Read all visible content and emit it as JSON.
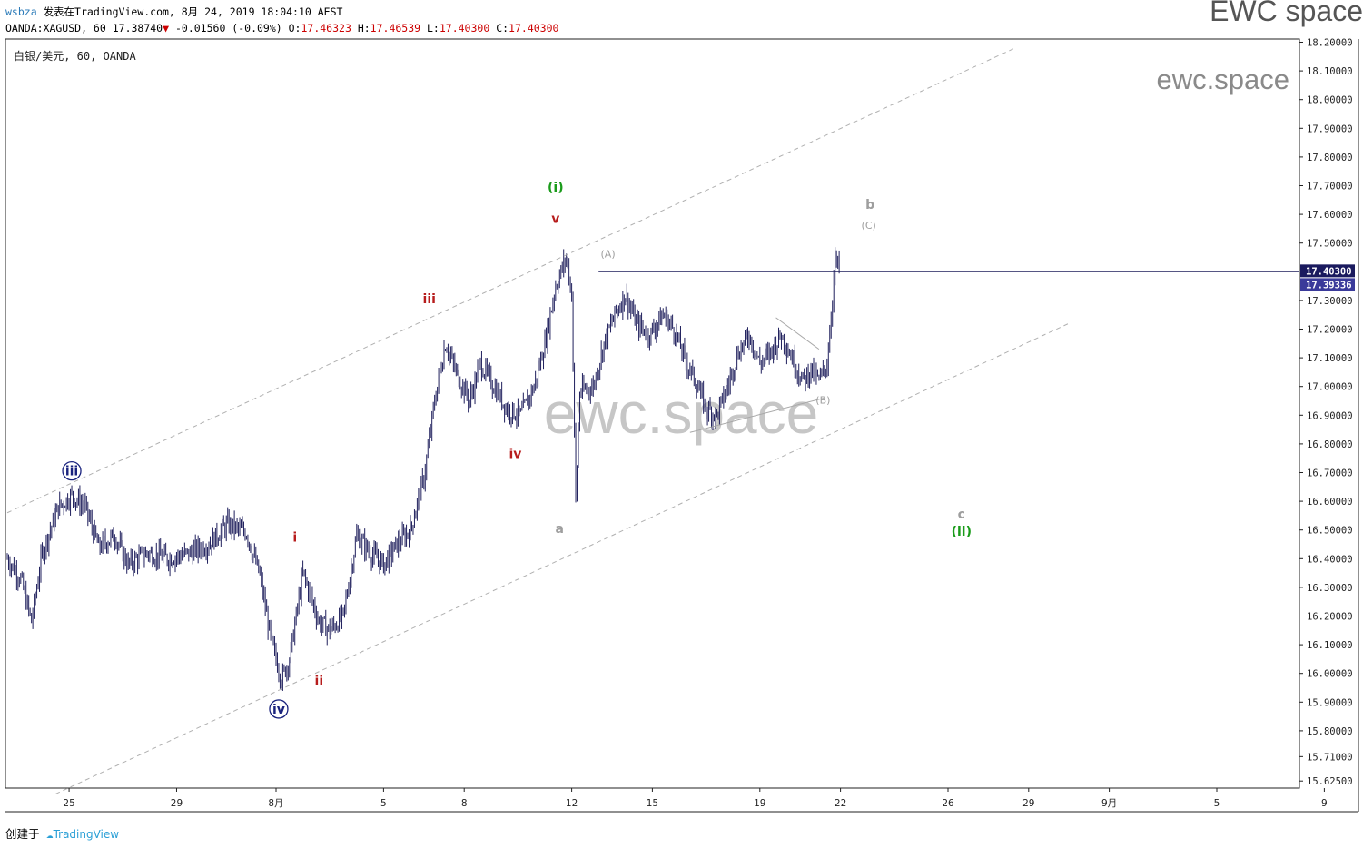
{
  "header": {
    "user": "wsbza",
    "published_text": "发表在TradingView.com, 8月 24, 2019 18:04:10 AEST",
    "symbol": "OANDA:XAGUSD, 60",
    "last": "17.38740",
    "change": "-0.01560 (-0.09%)",
    "o_label": "O:",
    "o_value": "17.46323",
    "h_label": "H:",
    "h_value": "17.46539",
    "l_label": "L:",
    "l_value": "17.40300",
    "c_label": "C:",
    "c_value": "17.40300"
  },
  "brand": "EWC space",
  "footer": {
    "created_by": "创建于",
    "tradingview": "TradingView"
  },
  "colors": {
    "candles": "#1f1f5c",
    "price_line": "#1f1f5c",
    "wave_red": "#b71c1c",
    "wave_green": "#1a9b1a",
    "wave_navy": "#1a237e",
    "wave_gray": "#9e9e9e",
    "channel": "#b0b0b0",
    "price_badge": "#1a1a5e",
    "price_badge2": "#3a3a9a"
  },
  "chart_data": {
    "type": "candlestick",
    "legend_name": "白银/美元, 60, OANDA",
    "watermark_small": "ewc.space",
    "watermark_big": "ewc.space",
    "ylim": [
      15.58,
      18.22
    ],
    "y_ticks": [
      "18.20000",
      "18.10000",
      "18.00000",
      "17.90000",
      "17.80000",
      "17.70000",
      "17.60000",
      "17.50000",
      "17.30000",
      "17.20000",
      "17.10000",
      "17.00000",
      "16.90000",
      "16.80000",
      "16.70000",
      "16.60000",
      "16.50000",
      "16.40000",
      "16.30000",
      "16.20000",
      "16.10000",
      "16.00000",
      "15.90000",
      "15.80000",
      "15.71000",
      "15.62500"
    ],
    "y_tick_values": [
      18.2,
      18.1,
      18.0,
      17.9,
      17.8,
      17.7,
      17.6,
      17.5,
      17.3,
      17.2,
      17.1,
      17.0,
      16.9,
      16.8,
      16.7,
      16.6,
      16.5,
      16.4,
      16.3,
      16.2,
      16.1,
      16.0,
      15.9,
      15.8,
      15.71,
      15.625
    ],
    "x_ticks": [
      {
        "label": "25",
        "day": 2.3
      },
      {
        "label": "29",
        "day": 6.3
      },
      {
        "label": "8月",
        "day": 10
      },
      {
        "label": "5",
        "day": 14
      },
      {
        "label": "8",
        "day": 17
      },
      {
        "label": "12",
        "day": 21
      },
      {
        "label": "15",
        "day": 24
      },
      {
        "label": "19",
        "day": 28
      },
      {
        "label": "22",
        "day": 31
      },
      {
        "label": "26",
        "day": 35
      },
      {
        "label": "29",
        "day": 38
      },
      {
        "label": "9月",
        "day": 41
      },
      {
        "label": "5",
        "day": 45
      },
      {
        "label": "9",
        "day": 49
      }
    ],
    "price_labels": [
      {
        "value": 17.403,
        "text": "17.40300"
      },
      {
        "value": 17.39336,
        "text": "17.39336"
      }
    ],
    "path": [
      {
        "d": 0,
        "p": 16.4
      },
      {
        "d": 0.5,
        "p": 16.33
      },
      {
        "d": 0.9,
        "p": 16.18
      },
      {
        "d": 1.3,
        "p": 16.42
      },
      {
        "d": 1.9,
        "p": 16.58
      },
      {
        "d": 2.4,
        "p": 16.62
      },
      {
        "d": 2.9,
        "p": 16.58
      },
      {
        "d": 3.4,
        "p": 16.44
      },
      {
        "d": 4.0,
        "p": 16.48
      },
      {
        "d": 4.5,
        "p": 16.38
      },
      {
        "d": 5.2,
        "p": 16.42
      },
      {
        "d": 6.0,
        "p": 16.4
      },
      {
        "d": 6.8,
        "p": 16.42
      },
      {
        "d": 7.5,
        "p": 16.45
      },
      {
        "d": 8.2,
        "p": 16.52
      },
      {
        "d": 8.9,
        "p": 16.49
      },
      {
        "d": 9.4,
        "p": 16.34
      },
      {
        "d": 9.8,
        "p": 16.12
      },
      {
        "d": 10.2,
        "p": 15.98
      },
      {
        "d": 10.5,
        "p": 16.05
      },
      {
        "d": 11.0,
        "p": 16.35
      },
      {
        "d": 11.6,
        "p": 16.18
      },
      {
        "d": 12.0,
        "p": 16.15
      },
      {
        "d": 12.5,
        "p": 16.2
      },
      {
        "d": 13.0,
        "p": 16.48
      },
      {
        "d": 13.5,
        "p": 16.42
      },
      {
        "d": 14.0,
        "p": 16.38
      },
      {
        "d": 14.5,
        "p": 16.45
      },
      {
        "d": 15.0,
        "p": 16.5
      },
      {
        "d": 15.5,
        "p": 16.68
      },
      {
        "d": 15.9,
        "p": 16.95
      },
      {
        "d": 16.3,
        "p": 17.15
      },
      {
        "d": 16.7,
        "p": 17.05
      },
      {
        "d": 17.2,
        "p": 16.95
      },
      {
        "d": 17.6,
        "p": 17.08
      },
      {
        "d": 18.1,
        "p": 17.0
      },
      {
        "d": 18.6,
        "p": 16.92
      },
      {
        "d": 19.1,
        "p": 16.9
      },
      {
        "d": 19.6,
        "p": 17.0
      },
      {
        "d": 20.0,
        "p": 17.15
      },
      {
        "d": 20.4,
        "p": 17.35
      },
      {
        "d": 20.8,
        "p": 17.45
      },
      {
        "d": 21.0,
        "p": 17.32
      },
      {
        "d": 21.15,
        "p": 16.6
      },
      {
        "d": 21.3,
        "p": 16.98
      },
      {
        "d": 21.8,
        "p": 17.0
      },
      {
        "d": 22.2,
        "p": 17.15
      },
      {
        "d": 22.6,
        "p": 17.25
      },
      {
        "d": 23.0,
        "p": 17.32
      },
      {
        "d": 23.4,
        "p": 17.22
      },
      {
        "d": 23.9,
        "p": 17.18
      },
      {
        "d": 24.4,
        "p": 17.25
      },
      {
        "d": 24.8,
        "p": 17.2
      },
      {
        "d": 25.2,
        "p": 17.1
      },
      {
        "d": 25.6,
        "p": 17.02
      },
      {
        "d": 26.0,
        "p": 16.92
      },
      {
        "d": 26.4,
        "p": 16.9
      },
      {
        "d": 26.8,
        "p": 17.0
      },
      {
        "d": 27.2,
        "p": 17.12
      },
      {
        "d": 27.6,
        "p": 17.18
      },
      {
        "d": 28.0,
        "p": 17.08
      },
      {
        "d": 28.4,
        "p": 17.12
      },
      {
        "d": 28.8,
        "p": 17.18
      },
      {
        "d": 29.2,
        "p": 17.1
      },
      {
        "d": 29.6,
        "p": 17.02
      },
      {
        "d": 29.9,
        "p": 17.06
      },
      {
        "d": 30.2,
        "p": 17.02
      },
      {
        "d": 30.5,
        "p": 17.08
      },
      {
        "d": 30.65,
        "p": 17.25
      },
      {
        "d": 30.8,
        "p": 17.44
      },
      {
        "d": 31.0,
        "p": 17.4
      }
    ],
    "channel_lines": [
      {
        "d1": 0,
        "p1": 16.56,
        "d2": 37.5,
        "p2": 18.18
      },
      {
        "d1": 1.8,
        "p1": 15.58,
        "d2": 39.5,
        "p2": 17.22
      }
    ],
    "triangle_lines": [
      {
        "d1": 25.4,
        "p1": 16.84,
        "d2": 30.4,
        "p2": 16.96
      },
      {
        "d1": 28.6,
        "p1": 17.24,
        "d2": 30.2,
        "p2": 17.13
      }
    ],
    "horizontal_line": {
      "d1": 22.0,
      "p": 17.4
    },
    "wave_labels": [
      {
        "text": "iii",
        "d": 2.4,
        "p": 16.69,
        "color": "navy",
        "circled": true,
        "bold": true
      },
      {
        "text": "iv",
        "d": 10.1,
        "p": 15.86,
        "color": "navy",
        "circled": true,
        "bold": true
      },
      {
        "text": "i",
        "d": 10.7,
        "p": 16.46,
        "color": "red",
        "bold": true
      },
      {
        "text": "ii",
        "d": 11.6,
        "p": 15.96,
        "color": "red",
        "bold": true
      },
      {
        "text": "iii",
        "d": 15.7,
        "p": 17.29,
        "color": "red",
        "bold": true
      },
      {
        "text": "iv",
        "d": 18.9,
        "p": 16.75,
        "color": "red",
        "bold": true
      },
      {
        "text": "v",
        "d": 20.4,
        "p": 17.57,
        "color": "red",
        "bold": true
      },
      {
        "text": "(i)",
        "d": 20.4,
        "p": 17.68,
        "color": "green",
        "bold": true
      },
      {
        "text": "a",
        "d": 20.55,
        "p": 16.49,
        "color": "gray",
        "bold": true
      },
      {
        "text": "(A)",
        "d": 22.35,
        "p": 17.45,
        "color": "gray",
        "bold": false,
        "small": true
      },
      {
        "text": "(B)",
        "d": 30.35,
        "p": 16.94,
        "color": "gray",
        "bold": false,
        "small": true
      },
      {
        "text": "b",
        "d": 32.1,
        "p": 17.62,
        "color": "gray",
        "bold": true
      },
      {
        "text": "(C)",
        "d": 32.05,
        "p": 17.55,
        "color": "gray",
        "bold": false,
        "small": true
      },
      {
        "text": "c",
        "d": 35.5,
        "p": 16.54,
        "color": "gray",
        "bold": true
      },
      {
        "text": "(ii)",
        "d": 35.5,
        "p": 16.48,
        "color": "green",
        "bold": true
      }
    ]
  }
}
